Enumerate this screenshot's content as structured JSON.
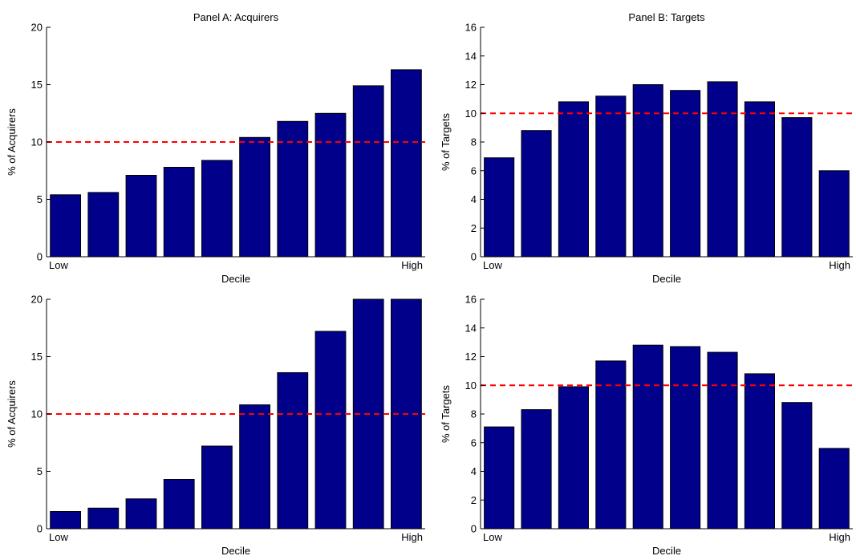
{
  "colors": {
    "bar_fill": "#00008b",
    "bar_stroke": "#000000",
    "reference_line": "#ff0000",
    "axis": "#000000"
  },
  "chart_data": [
    {
      "type": "bar",
      "title": "Panel A: Acquirers",
      "xlabel": "Decile",
      "ylabel": "% of Acquirers",
      "x_tick_labels": {
        "first": "Low",
        "last": "High"
      },
      "categories": [
        1,
        2,
        3,
        4,
        5,
        6,
        7,
        8,
        9,
        10
      ],
      "values": [
        5.4,
        5.6,
        7.1,
        7.8,
        8.4,
        10.4,
        11.8,
        12.5,
        14.9,
        16.3
      ],
      "ylim": [
        0,
        20
      ],
      "yticks": [
        0,
        5,
        10,
        15,
        20
      ],
      "reference_line": 10
    },
    {
      "type": "bar",
      "title": "Panel B: Targets",
      "xlabel": "Decile",
      "ylabel": "% of Targets",
      "x_tick_labels": {
        "first": "Low",
        "last": "High"
      },
      "categories": [
        1,
        2,
        3,
        4,
        5,
        6,
        7,
        8,
        9,
        10
      ],
      "values": [
        6.9,
        8.8,
        10.8,
        11.2,
        12.0,
        11.6,
        12.2,
        10.8,
        9.7,
        6.0
      ],
      "ylim": [
        0,
        16
      ],
      "yticks": [
        0,
        2,
        4,
        6,
        8,
        10,
        12,
        14,
        16
      ],
      "reference_line": 10
    },
    {
      "type": "bar",
      "title": "",
      "xlabel": "Decile",
      "ylabel": "% of Acquirers",
      "x_tick_labels": {
        "first": "Low",
        "last": "High"
      },
      "categories": [
        1,
        2,
        3,
        4,
        5,
        6,
        7,
        8,
        9,
        10
      ],
      "values": [
        1.5,
        1.8,
        2.6,
        4.3,
        7.2,
        10.8,
        13.6,
        17.2,
        20.0,
        20.0
      ],
      "ylim": [
        0,
        20
      ],
      "yticks": [
        0,
        5,
        10,
        15,
        20
      ],
      "reference_line": 10
    },
    {
      "type": "bar",
      "title": "",
      "xlabel": "Decile",
      "ylabel": "% of Targets",
      "x_tick_labels": {
        "first": "Low",
        "last": "High"
      },
      "categories": [
        1,
        2,
        3,
        4,
        5,
        6,
        7,
        8,
        9,
        10
      ],
      "values": [
        7.1,
        8.3,
        9.9,
        11.7,
        12.8,
        12.7,
        12.3,
        10.8,
        8.8,
        5.6
      ],
      "ylim": [
        0,
        16
      ],
      "yticks": [
        0,
        2,
        4,
        6,
        8,
        10,
        12,
        14,
        16
      ],
      "reference_line": 10
    }
  ]
}
